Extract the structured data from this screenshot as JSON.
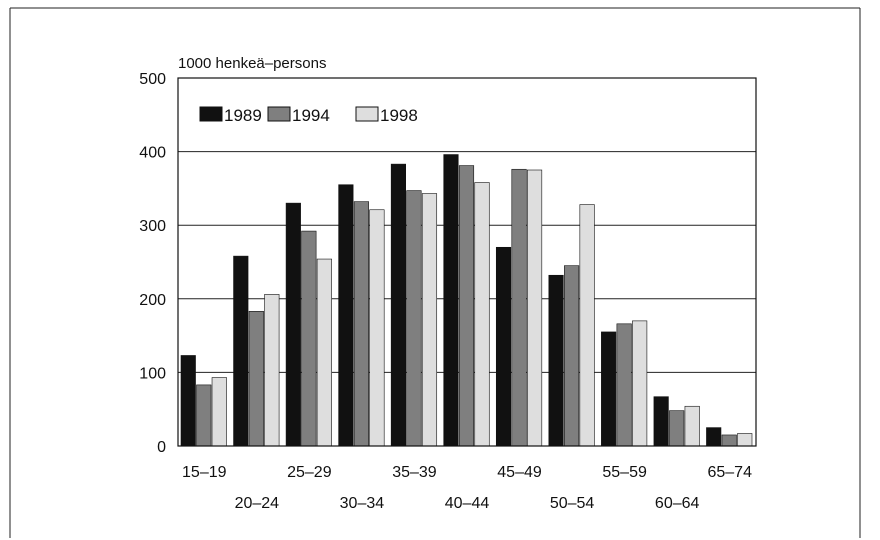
{
  "chart_data": {
    "type": "bar",
    "unit_label": "1000 henkeä–persons",
    "categories": [
      "15–19",
      "20–24",
      "25–29",
      "30–34",
      "35–39",
      "40–44",
      "45–49",
      "50–54",
      "55–59",
      "60–64",
      "65–74"
    ],
    "series": [
      {
        "name": "1989",
        "color": "#111111",
        "values": [
          123,
          258,
          330,
          355,
          383,
          396,
          270,
          232,
          155,
          67,
          25
        ]
      },
      {
        "name": "1994",
        "color": "#7f7f7f",
        "values": [
          83,
          183,
          292,
          332,
          347,
          381,
          376,
          245,
          166,
          48,
          15
        ]
      },
      {
        "name": "1998",
        "color": "#dedede",
        "values": [
          93,
          206,
          254,
          321,
          343,
          358,
          375,
          328,
          170,
          54,
          17
        ]
      }
    ],
    "y_ticks": [
      0,
      100,
      200,
      300,
      400,
      500
    ],
    "ylim": [
      0,
      500
    ],
    "grid": true,
    "legend_position": "top-left"
  }
}
